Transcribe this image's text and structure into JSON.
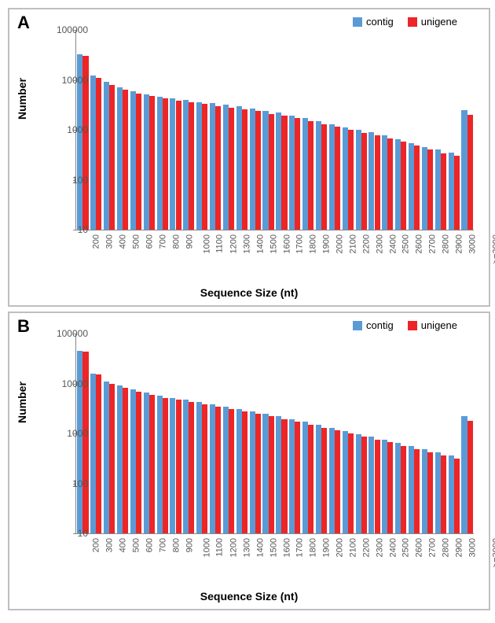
{
  "panels": [
    {
      "label": "A",
      "ylabel": "Number",
      "xlabel": "Sequence Size (nt)",
      "type": "bar",
      "yscale": "log",
      "ylim_log": [
        1,
        5
      ],
      "yticks": [
        10,
        100,
        1000,
        10000,
        100000
      ],
      "categories": [
        "200",
        "300",
        "400",
        "500",
        "600",
        "700",
        "800",
        "900",
        "1000",
        "1100",
        "1200",
        "1300",
        "1400",
        "1500",
        "1600",
        "1700",
        "1800",
        "1900",
        "2000",
        "2100",
        "2200",
        "2300",
        "2400",
        "2500",
        "2600",
        "2700",
        "2800",
        "2900",
        "3000",
        ">=3000"
      ],
      "series": [
        {
          "name": "contig",
          "color": "#5b9bd5",
          "values": [
            32000,
            12000,
            9000,
            7200,
            6000,
            5200,
            4600,
            4200,
            4000,
            3600,
            3400,
            3200,
            3000,
            2700,
            2400,
            2200,
            1900,
            1700,
            1500,
            1300,
            1100,
            1000,
            900,
            780,
            650,
            550,
            450,
            400,
            350,
            2500
          ]
        },
        {
          "name": "unigene",
          "color": "#ed2526",
          "values": [
            30000,
            11000,
            8000,
            6400,
            5400,
            4700,
            4200,
            3800,
            3600,
            3300,
            3000,
            2800,
            2600,
            2400,
            2100,
            1900,
            1700,
            1500,
            1300,
            1150,
            1000,
            880,
            780,
            680,
            580,
            480,
            400,
            340,
            300,
            2000
          ]
        }
      ],
      "bar_group_width": 0.84,
      "label_fontsize": 14,
      "tick_fontsize": 11,
      "border_color": "#bfbfbf",
      "axis_color": "#888888",
      "background_color": "#ffffff"
    },
    {
      "label": "B",
      "ylabel": "Number",
      "xlabel": "Sequence Size (nt)",
      "type": "bar",
      "yscale": "log",
      "ylim_log": [
        1,
        5
      ],
      "yticks": [
        10,
        100,
        1000,
        10000,
        100000
      ],
      "categories": [
        "200",
        "300",
        "400",
        "500",
        "600",
        "700",
        "800",
        "900",
        "1000",
        "1100",
        "1200",
        "1300",
        "1400",
        "1500",
        "1600",
        "1700",
        "1800",
        "1900",
        "2000",
        "2100",
        "2200",
        "2300",
        "2400",
        "2500",
        "2600",
        "2700",
        "2800",
        "2900",
        "3000",
        ">=3000"
      ],
      "series": [
        {
          "name": "contig",
          "color": "#5b9bd5",
          "values": [
            45000,
            16000,
            11000,
            9000,
            7500,
            6500,
            5800,
            5200,
            4700,
            4200,
            3800,
            3400,
            3100,
            2800,
            2500,
            2200,
            1900,
            1700,
            1500,
            1300,
            1100,
            970,
            850,
            740,
            650,
            560,
            480,
            420,
            360,
            2200
          ]
        },
        {
          "name": "unigene",
          "color": "#ed2526",
          "values": [
            44000,
            15000,
            10000,
            8200,
            6800,
            5900,
            5200,
            4700,
            4200,
            3800,
            3400,
            3100,
            2800,
            2500,
            2200,
            1950,
            1700,
            1500,
            1300,
            1150,
            1000,
            870,
            750,
            660,
            570,
            490,
            420,
            360,
            310,
            1800
          ]
        }
      ],
      "bar_group_width": 0.84,
      "label_fontsize": 14,
      "tick_fontsize": 11,
      "border_color": "#bfbfbf",
      "axis_color": "#888888",
      "background_color": "#ffffff"
    }
  ]
}
